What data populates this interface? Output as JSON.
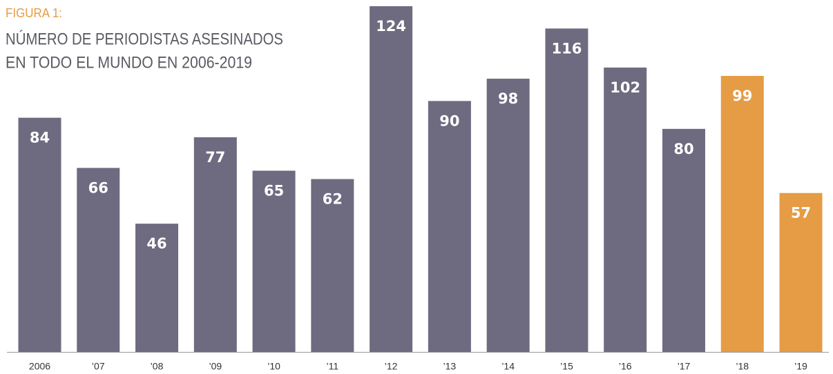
{
  "chart_data": {
    "type": "bar",
    "label": "FIGURA 1:",
    "title": [
      "NÚMERO DE PERIODISTAS ASESINADOS",
      "EN TODO EL MUNDO EN 2006-2019"
    ],
    "categories": [
      "2006",
      "’07",
      "’08",
      "’09",
      "’10",
      "’11",
      "’12",
      "’13",
      "’14",
      "’15",
      "’16",
      "’17",
      "’18",
      "’19"
    ],
    "values": [
      84,
      66,
      46,
      77,
      65,
      62,
      124,
      90,
      98,
      116,
      102,
      80,
      99,
      57
    ],
    "colors": [
      "#6e6b80",
      "#6e6b80",
      "#6e6b80",
      "#6e6b80",
      "#6e6b80",
      "#6e6b80",
      "#6e6b80",
      "#6e6b80",
      "#6e6b80",
      "#6e6b80",
      "#6e6b80",
      "#6e6b80",
      "#e59c45",
      "#e59c45"
    ]
  }
}
